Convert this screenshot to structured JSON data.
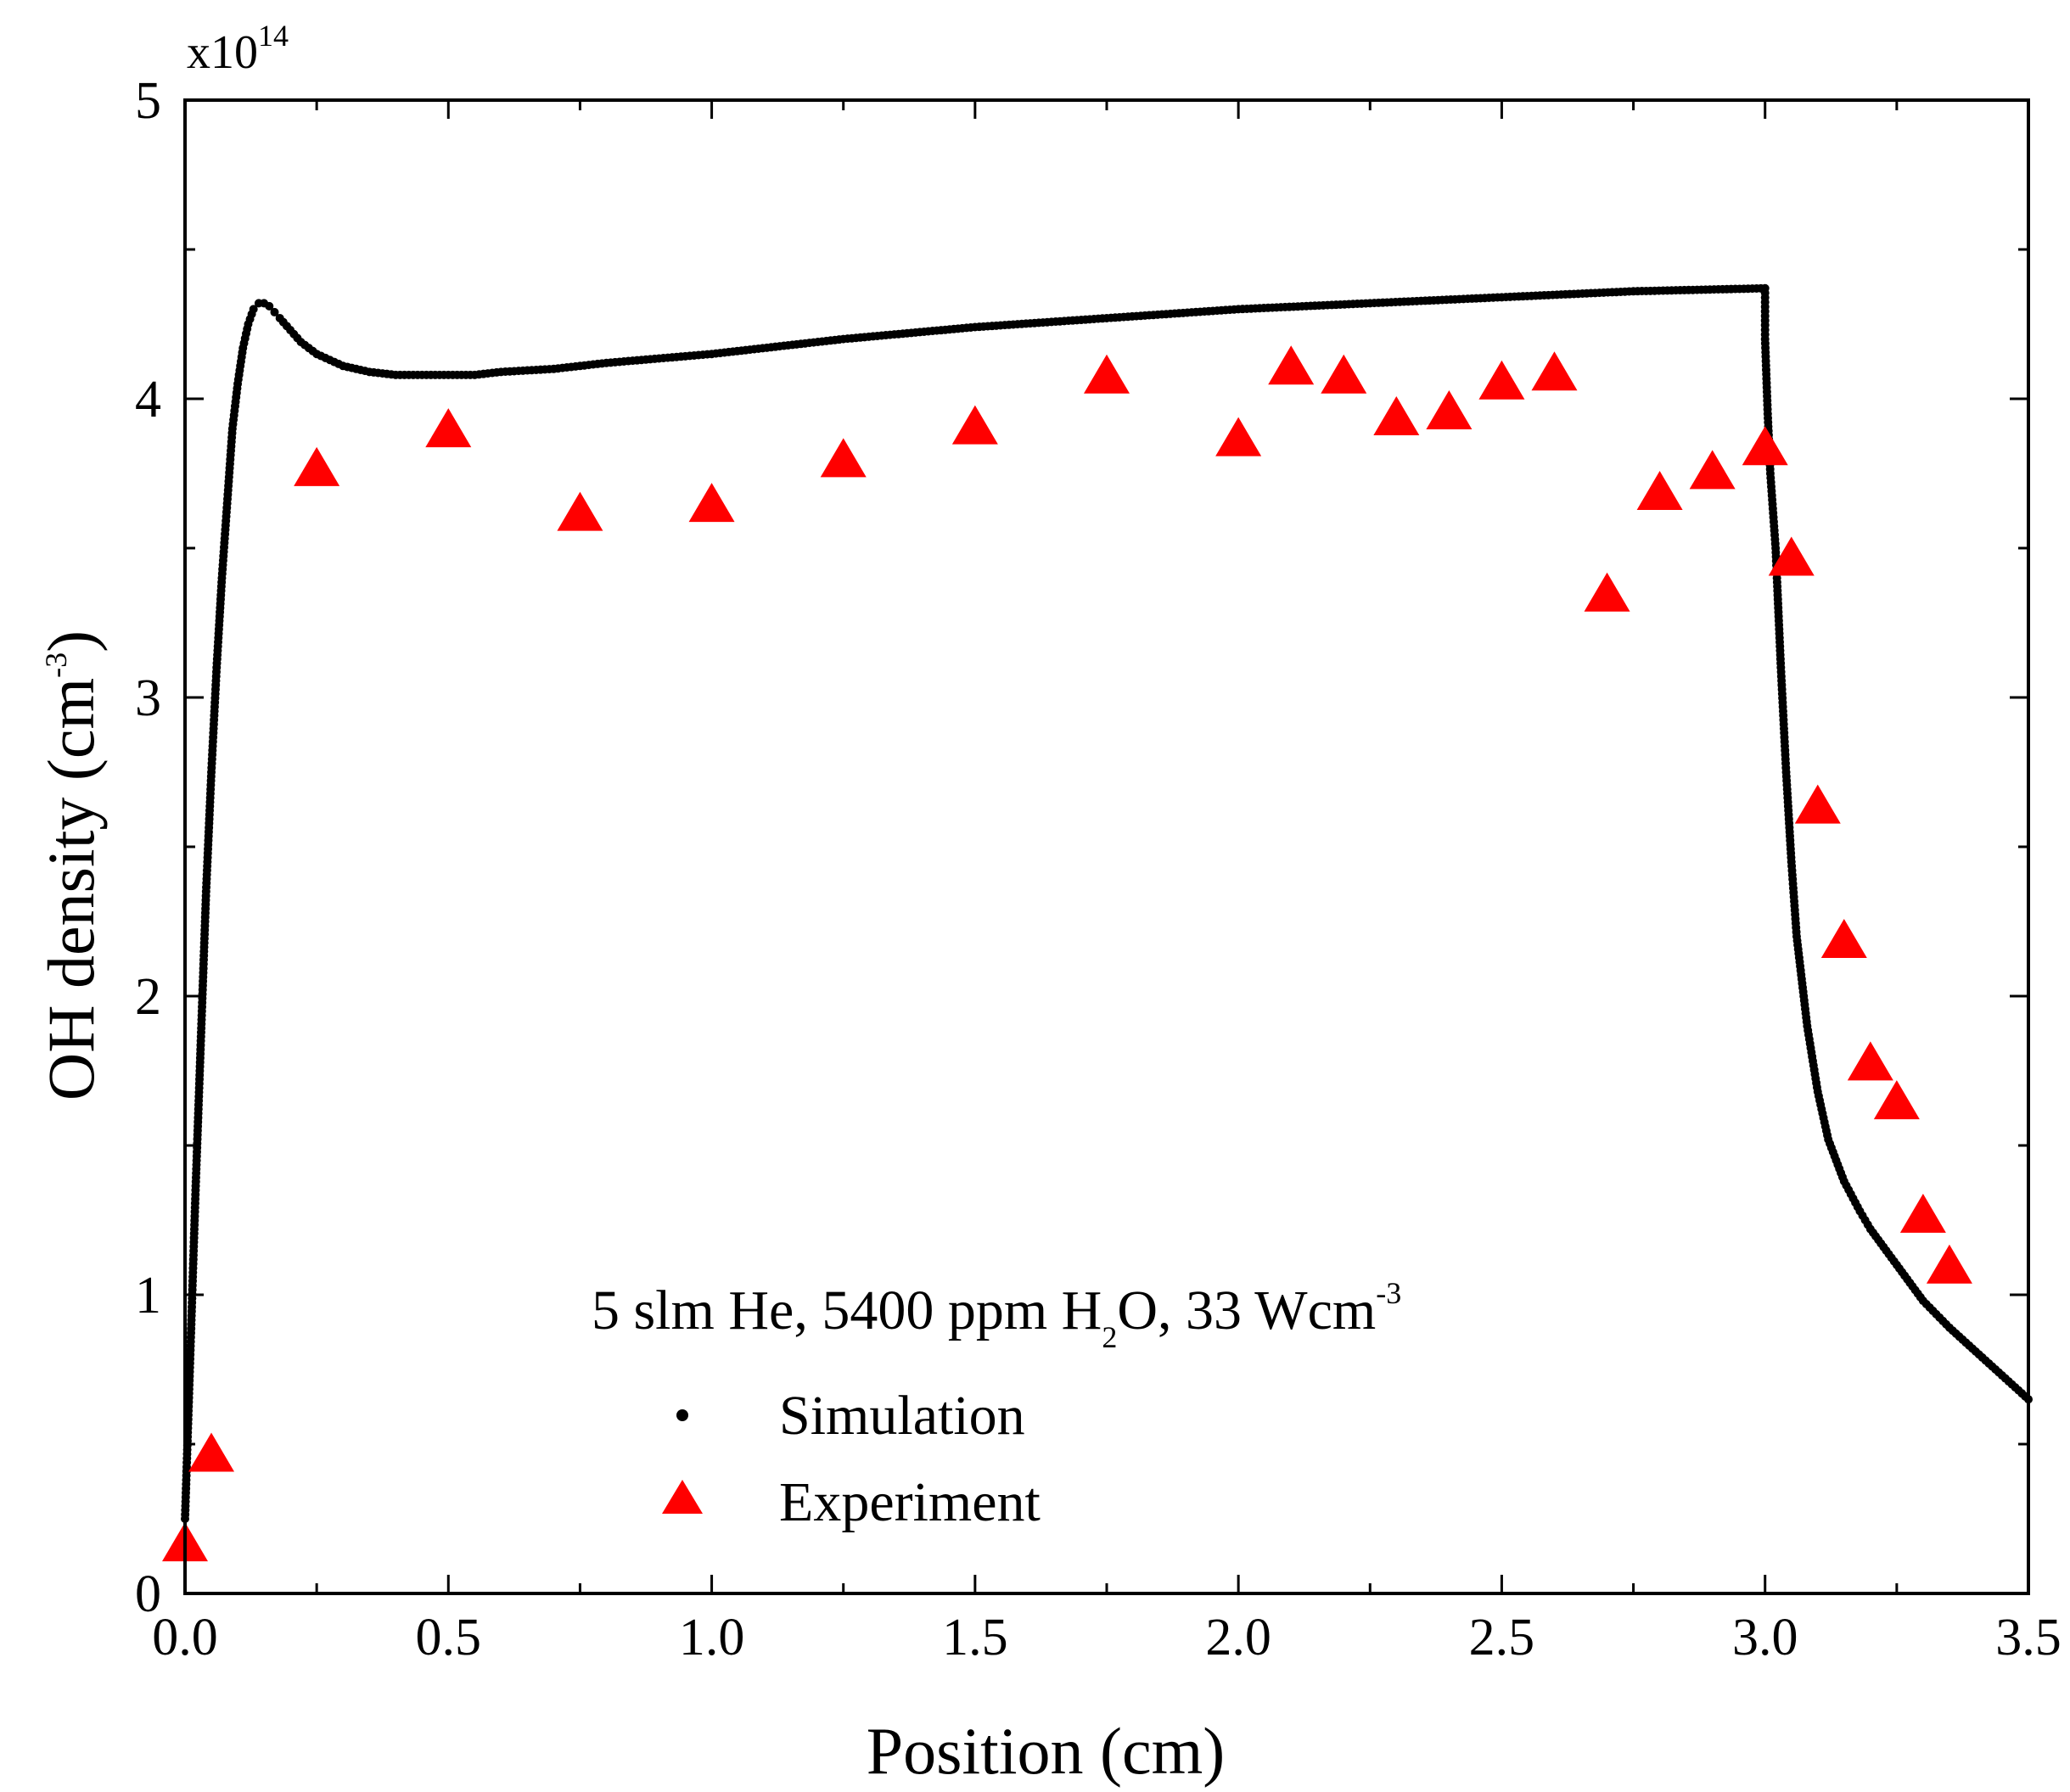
{
  "chart_data": {
    "type": "scatter",
    "xlabel": "Position (cm)",
    "ylabel": "OH density (cm",
    "ylabel_sup": "-3",
    "ylabel_tail": ")",
    "y_multiplier_base": "x10",
    "y_multiplier_exp": "14",
    "xlim": [
      0,
      3.5
    ],
    "ylim": [
      0,
      5
    ],
    "x_ticks": [
      0.0,
      0.5,
      1.0,
      1.5,
      2.0,
      2.5,
      3.0,
      3.5
    ],
    "x_tick_labels": [
      "0.0",
      "0.5",
      "1.0",
      "1.5",
      "2.0",
      "2.5",
      "3.0",
      "3.5"
    ],
    "y_ticks": [
      0,
      1,
      2,
      3,
      4,
      5
    ],
    "y_tick_labels": [
      "0",
      "1",
      "2",
      "3",
      "4",
      "5"
    ],
    "y_minor_step": 0.5,
    "x_minor_step": 0.25,
    "grid": false,
    "legend_position": "bottom-center",
    "annotation": {
      "parts": [
        {
          "text": "5 slm He, 5400 ppm H",
          "style": "normal"
        },
        {
          "text": "2",
          "style": "sub"
        },
        {
          "text": "O, 33 Wcm",
          "style": "normal"
        },
        {
          "text": "-3",
          "style": "sup"
        }
      ]
    },
    "series": [
      {
        "name": "Simulation",
        "marker": "dot",
        "color": "#000000",
        "x": [
          0.0,
          0.01,
          0.02,
          0.03,
          0.04,
          0.05,
          0.06,
          0.07,
          0.08,
          0.09,
          0.1,
          0.11,
          0.12,
          0.13,
          0.14,
          0.15,
          0.16,
          0.17,
          0.18,
          0.2,
          0.22,
          0.25,
          0.3,
          0.35,
          0.4,
          0.45,
          0.5,
          0.55,
          0.6,
          0.7,
          0.8,
          1.0,
          1.25,
          1.5,
          1.75,
          2.0,
          2.25,
          2.5,
          2.75,
          3.0,
          3.0,
          3.005,
          3.01,
          3.02,
          3.03,
          3.04,
          3.05,
          3.06,
          3.08,
          3.1,
          3.12,
          3.15,
          3.18,
          3.2,
          3.25,
          3.3,
          3.35,
          3.4,
          3.45,
          3.5
        ],
        "y": [
          0.25,
          0.8,
          1.35,
          1.85,
          2.35,
          2.75,
          3.1,
          3.4,
          3.65,
          3.9,
          4.05,
          4.17,
          4.25,
          4.3,
          4.32,
          4.32,
          4.31,
          4.29,
          4.27,
          4.23,
          4.19,
          4.15,
          4.11,
          4.09,
          4.08,
          4.08,
          4.08,
          4.08,
          4.09,
          4.1,
          4.12,
          4.15,
          4.2,
          4.24,
          4.27,
          4.3,
          4.32,
          4.34,
          4.36,
          4.37,
          4.2,
          3.95,
          3.75,
          3.5,
          3.1,
          2.75,
          2.45,
          2.2,
          1.9,
          1.68,
          1.52,
          1.38,
          1.28,
          1.22,
          1.1,
          0.98,
          0.89,
          0.81,
          0.73,
          0.65
        ]
      },
      {
        "name": "Experiment",
        "marker": "triangle",
        "color": "#ff0000",
        "x": [
          0.0,
          0.05,
          0.25,
          0.5,
          0.75,
          1.0,
          1.25,
          1.5,
          1.75,
          2.0,
          2.1,
          2.2,
          2.3,
          2.4,
          2.5,
          2.6,
          2.7,
          2.8,
          2.9,
          3.0,
          3.05,
          3.1,
          3.15,
          3.2,
          3.25,
          3.3,
          3.35
        ],
        "y": [
          0.16,
          0.46,
          3.76,
          3.89,
          3.61,
          3.64,
          3.79,
          3.9,
          4.07,
          3.86,
          4.1,
          4.07,
          3.93,
          3.95,
          4.05,
          4.08,
          3.34,
          3.68,
          3.75,
          3.83,
          3.46,
          2.63,
          2.18,
          1.77,
          1.64,
          1.26,
          1.09
        ]
      }
    ]
  }
}
